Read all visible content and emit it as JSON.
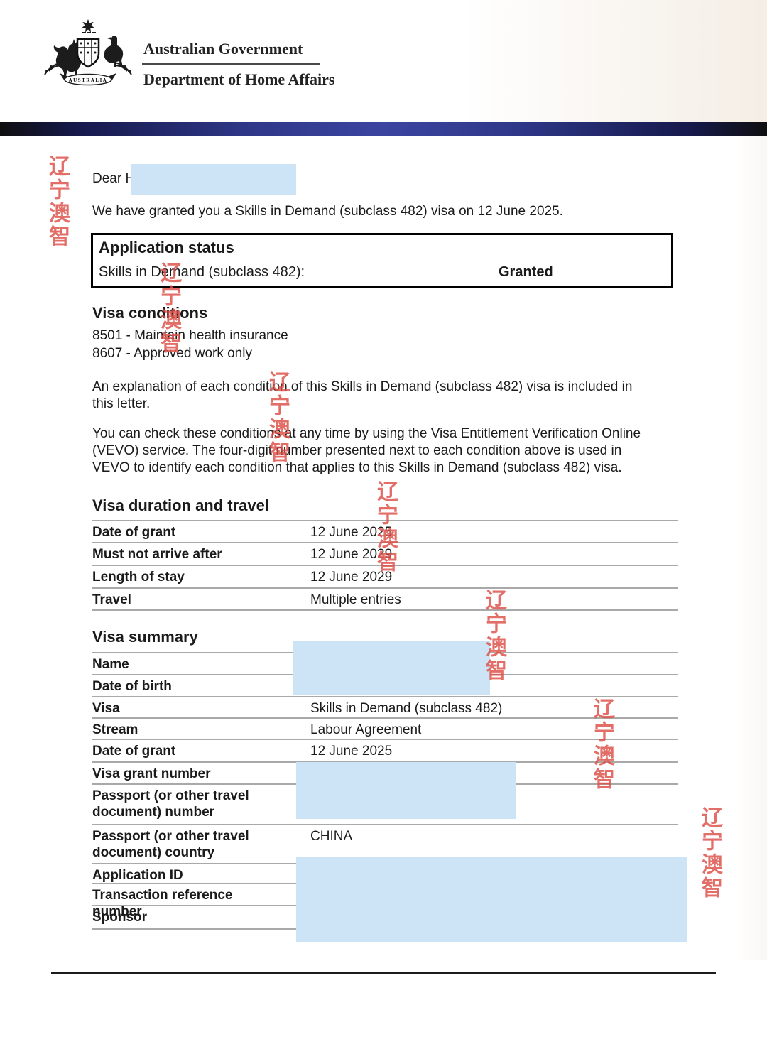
{
  "header": {
    "government": "Australian Government",
    "department": "Department of Home Affairs",
    "logo": "australian-coat-of-arms",
    "banner_text": "AUSTRALIA"
  },
  "letter": {
    "salutation": "Dear H",
    "intro": "We have granted you a Skills in Demand (subclass 482) visa on 12 June 2025.",
    "application_status": {
      "title": "Application status",
      "row_label": "Skills in Demand (subclass 482):",
      "row_value": "Granted"
    },
    "visa_conditions": {
      "title": "Visa conditions",
      "items": [
        "8501 - Maintain health insurance",
        "8607 - Approved work only"
      ]
    },
    "paragraphs": {
      "explanation": "An explanation of each condition of this Skills in Demand (subclass 482) visa is included in\nthis letter.",
      "vevo": "You can check these conditions at any time by using the Visa Entitlement Verification Online\n(VEVO) service. The four-digit number presented next to each condition above is used in\nVEVO to identify each condition that applies to this Skills in Demand (subclass 482) visa."
    },
    "duration_table": {
      "title": "Visa duration and travel",
      "rows": [
        {
          "label": "Date of grant",
          "value": "12 June 2025"
        },
        {
          "label": "Must not arrive after",
          "value": "12 June 2029"
        },
        {
          "label": "Length of stay",
          "value": "12 June 2029"
        },
        {
          "label": "Travel",
          "value": "Multiple entries"
        }
      ]
    },
    "summary_table": {
      "title": "Visa summary",
      "rows": [
        {
          "label": "Name",
          "value": "",
          "redacted": true
        },
        {
          "label": "Date of birth",
          "value": "",
          "redacted": true
        },
        {
          "label": "Visa",
          "value": "Skills in Demand (subclass 482)"
        },
        {
          "label": "Stream",
          "value": "Labour Agreement"
        },
        {
          "label": "Date of grant",
          "value": "12 June 2025"
        },
        {
          "label": "Visa grant number",
          "value": "",
          "redacted": true
        },
        {
          "label": "Passport (or other travel document) number",
          "value": "",
          "redacted": true
        },
        {
          "label": "Passport (or other travel document) country",
          "value": "CHINA"
        },
        {
          "label": "Application ID",
          "value": "",
          "redacted": true
        },
        {
          "label": "Transaction reference number",
          "value": "",
          "redacted": true
        },
        {
          "label": "Sponsor",
          "value": "",
          "redacted": true
        }
      ]
    }
  },
  "watermark": {
    "text": "辽宁澳智",
    "color": "#dd4f48"
  },
  "colors": {
    "redaction_blue": "#cde3f6",
    "header_bar_blue": "#3b45a0",
    "table_line_gray": "#a9a9a9",
    "text": "#1a1a1a"
  }
}
